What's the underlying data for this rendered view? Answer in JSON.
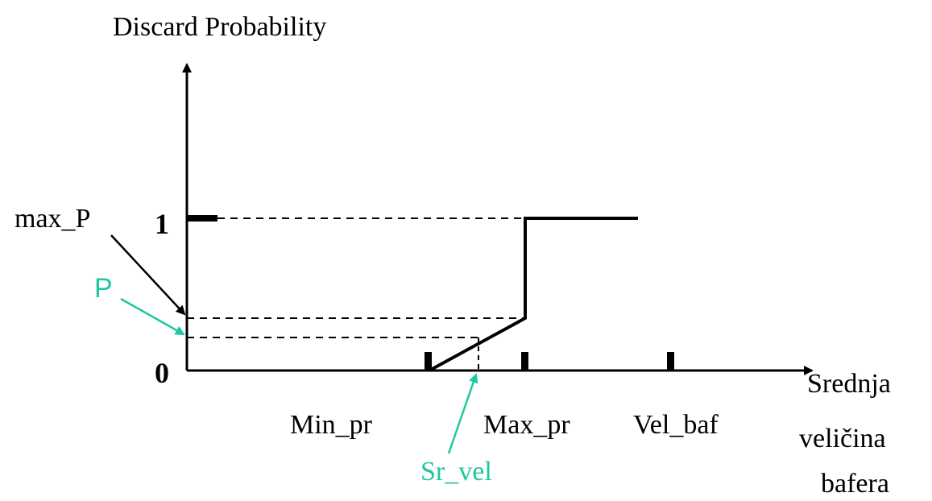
{
  "diagram": {
    "y_axis_label": "Discard Probability",
    "x_axis_label_lines": [
      "Srednja",
      "veličina",
      "bafera"
    ],
    "y_tick_one": "1",
    "y_tick_zero": "0",
    "label_max_p": "max_P",
    "label_p": "P",
    "x_labels": {
      "min_pr": "Min_pr",
      "max_pr": "Max_pr",
      "vel_baf": "Vel_baf",
      "sr_vel": "Sr_vel"
    },
    "colors": {
      "ink": "#000000",
      "highlight": "#1fc7a0",
      "background": "#ffffff"
    }
  }
}
